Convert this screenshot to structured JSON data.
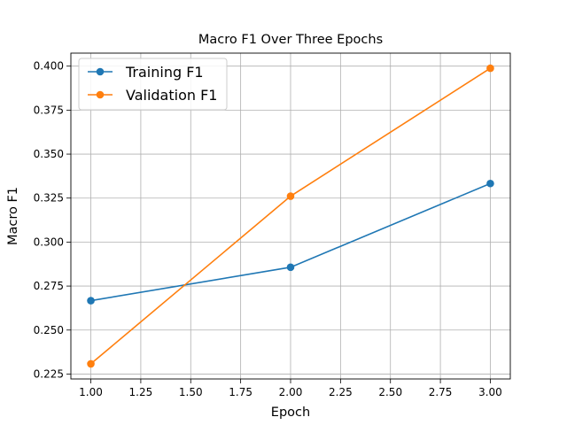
{
  "chart_data": {
    "type": "line",
    "title": "Macro F1 Over Three Epochs",
    "xlabel": "Epoch",
    "ylabel": "Macro F1",
    "xlim": [
      0.9,
      3.1
    ],
    "ylim": [
      0.2222,
      0.4074
    ],
    "x_ticks": [
      "1.00",
      "1.25",
      "1.50",
      "1.75",
      "2.00",
      "2.25",
      "2.50",
      "2.75",
      "3.00"
    ],
    "y_ticks": [
      "0.225",
      "0.250",
      "0.275",
      "0.300",
      "0.325",
      "0.350",
      "0.375",
      "0.400"
    ],
    "grid": true,
    "legend_position": "upper-left",
    "series": [
      {
        "name": "Training F1",
        "color": "#1f77b4",
        "marker": "circle",
        "x": [
          1,
          2,
          3
        ],
        "y": [
          0.2667,
          0.2857,
          0.3333
        ]
      },
      {
        "name": "Validation F1",
        "color": "#ff7f0e",
        "marker": "circle",
        "x": [
          1,
          2,
          3
        ],
        "y": [
          0.2308,
          0.3261,
          0.3988
        ]
      }
    ]
  }
}
